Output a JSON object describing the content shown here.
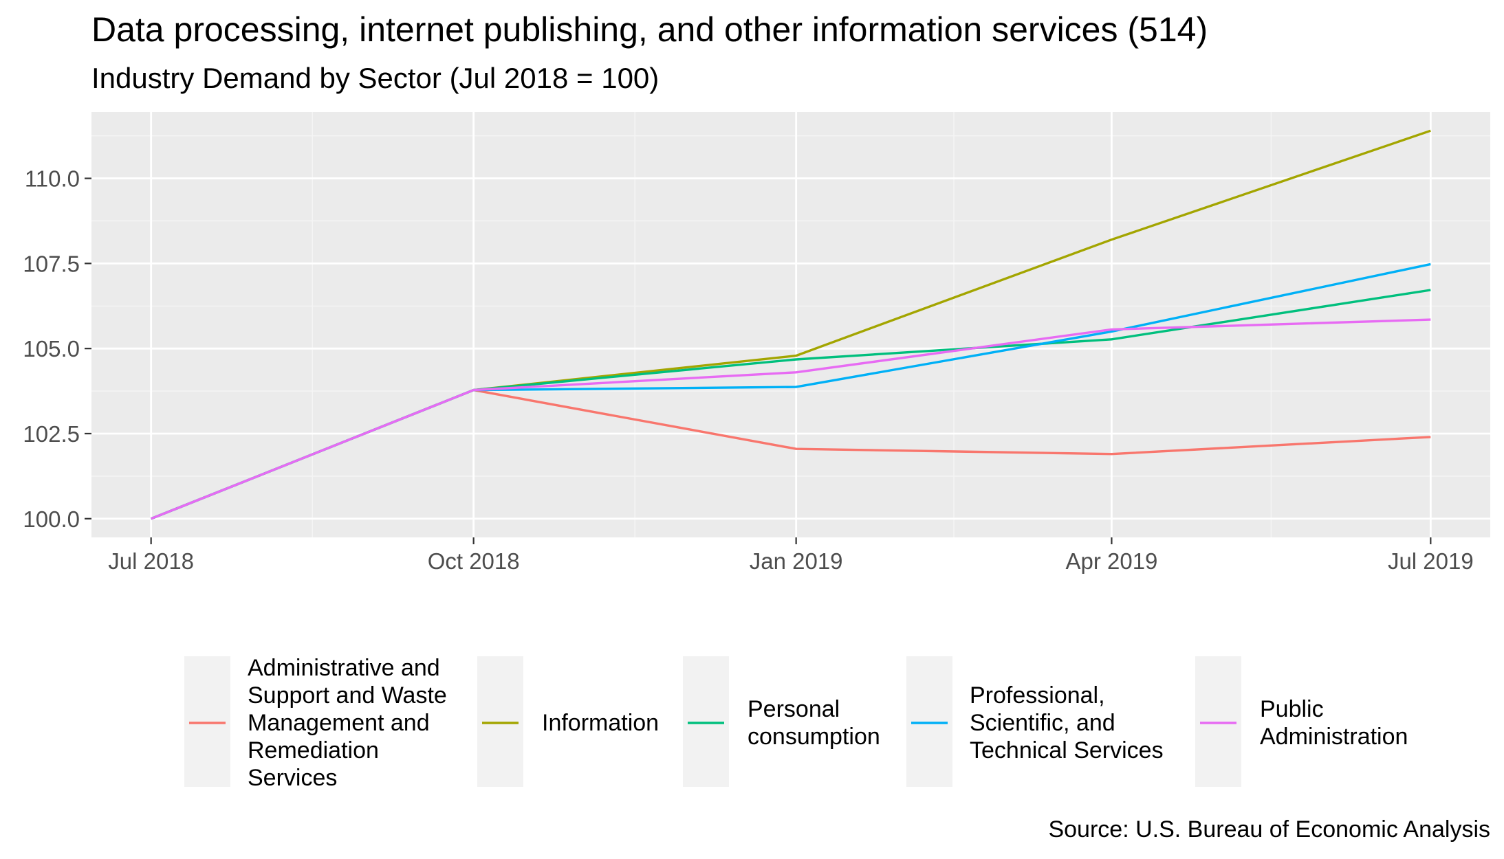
{
  "title": "Data processing, internet publishing, and other information services (514)",
  "subtitle": "Industry Demand by Sector (Jul 2018 = 100)",
  "caption": "Source: U.S. Bureau of Economic Analysis",
  "colors": {
    "panel_background": "#EBEBEB",
    "grid_major": "#FFFFFF",
    "grid_minor": "#F5F5F5",
    "legend_key_background": "#F2F2F2",
    "axis_text": "#4D4D4D"
  },
  "chart_data": {
    "type": "line",
    "x": [
      "2018-07-01",
      "2018-10-01",
      "2019-01-01",
      "2019-04-01",
      "2019-07-01"
    ],
    "x_tick_labels": [
      "Jul 2018",
      "Oct 2018",
      "Jan 2019",
      "Apr 2019",
      "Jul 2019"
    ],
    "y_tick_labels": [
      "100.0",
      "102.5",
      "105.0",
      "107.5",
      "110.0"
    ],
    "y_ticks": [
      100,
      102.5,
      105,
      107.5,
      110
    ],
    "ylim": [
      99.45,
      111.95
    ],
    "xlim": [
      "2018-06-14",
      "2019-07-18"
    ],
    "grid": true,
    "legend_position": "bottom",
    "series": [
      {
        "name": "Administrative and Support and Waste Management and Remediation Services",
        "legend_label": "Administrative and\nSupport and Waste\nManagement and\nRemediation\nServices",
        "color": "#F8766D",
        "values": [
          100,
          103.78,
          102.05,
          101.9,
          102.4
        ]
      },
      {
        "name": "Information",
        "legend_label": "Information",
        "color": "#A3A500",
        "values": [
          100,
          103.78,
          104.79,
          108.2,
          111.4
        ]
      },
      {
        "name": "Personal consumption",
        "legend_label": "Personal\nconsumption",
        "color": "#00BF7D",
        "values": [
          100,
          103.78,
          104.68,
          105.27,
          106.72
        ]
      },
      {
        "name": "Professional, Scientific, and Technical Services",
        "legend_label": "Professional,\nScientific, and\nTechnical Services",
        "color": "#00B0F6",
        "values": [
          100,
          103.78,
          103.87,
          105.5,
          107.48
        ]
      },
      {
        "name": "Public Administration",
        "legend_label": "Public\nAdministration",
        "color": "#E76BF3",
        "values": [
          100,
          103.78,
          104.3,
          105.56,
          105.85
        ]
      }
    ]
  }
}
